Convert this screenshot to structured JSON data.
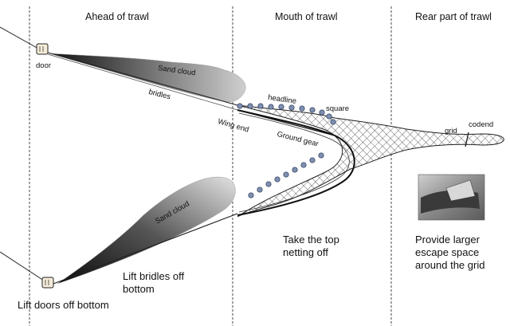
{
  "headers": {
    "ahead": "Ahead of trawl",
    "mouth": "Mouth of trawl",
    "rear": "Rear part of trawl"
  },
  "labels": {
    "door": "door",
    "sand_cloud": "Sand cloud",
    "bridles": "bridles",
    "headline": "headline",
    "square": "square",
    "wing_end": "Wing end",
    "ground_gear": "Ground gear",
    "grid": "grid",
    "codend": "codend"
  },
  "captions": {
    "lift_doors": "Lift doors off bottom",
    "lift_bridles": "Lift bridles off bottom",
    "take_top": "Take the top netting off",
    "larger_escape": "Provide larger escape space around the grid"
  }
}
